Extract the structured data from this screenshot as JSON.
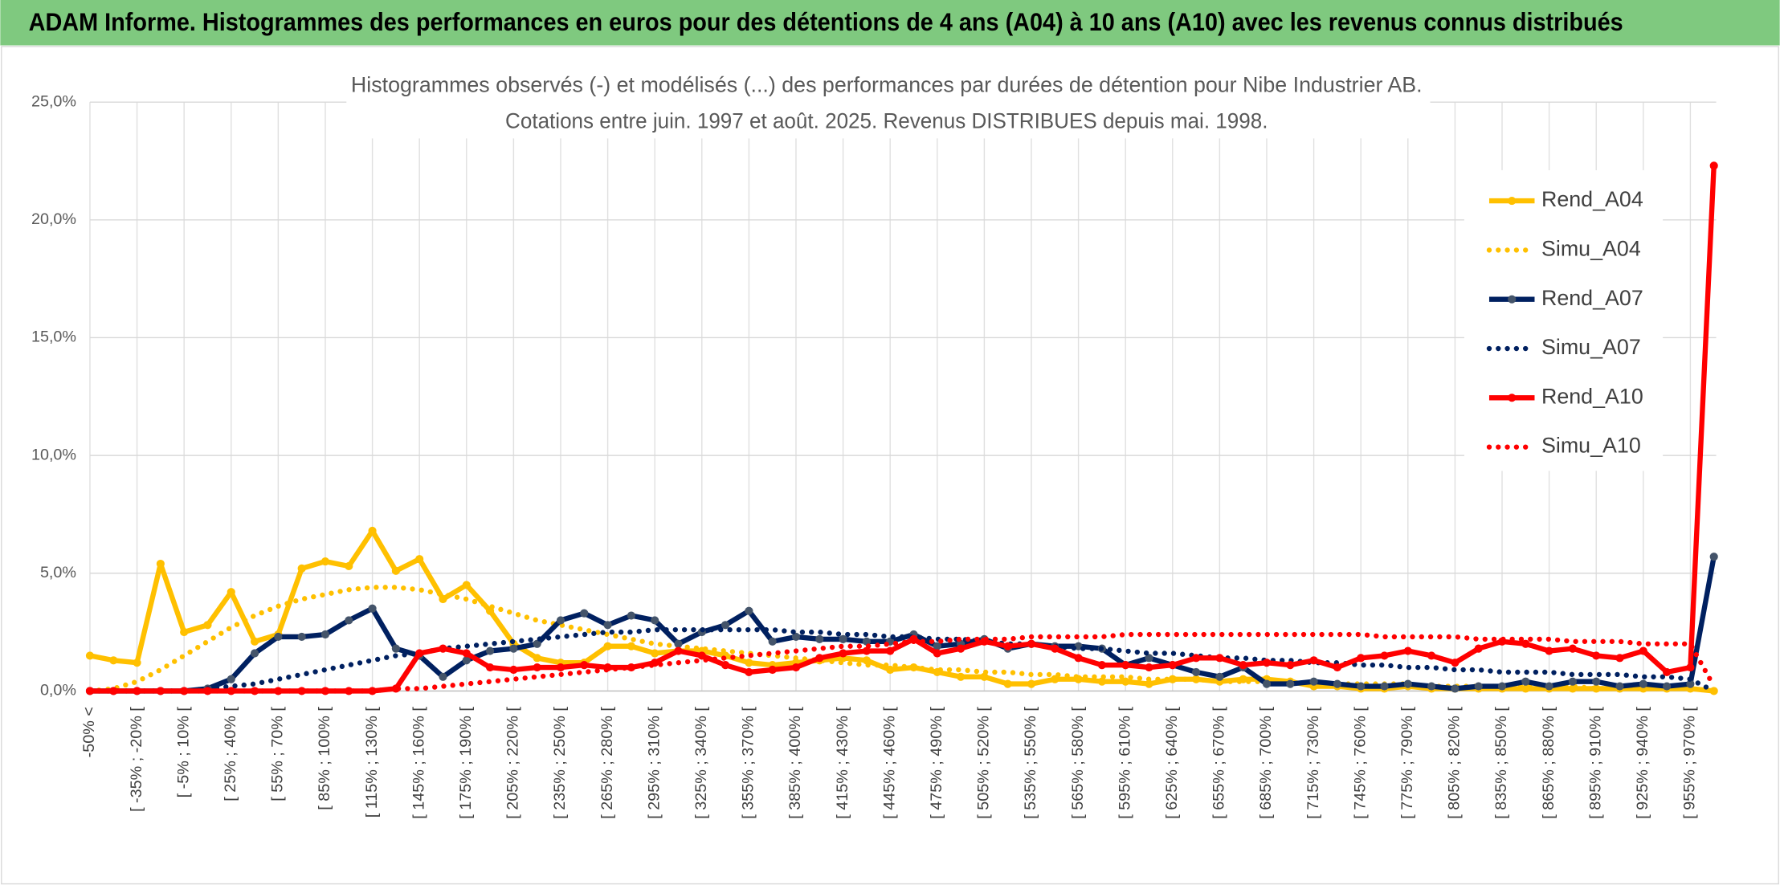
{
  "header": {
    "title": "ADAM Informe. Histogrammes des performances en euros pour des détentions de 4 ans (A04) à 10 ans (A10) avec les revenus connus distribués"
  },
  "chart_data": {
    "type": "line",
    "title": "Histogrammes observés (-) et modélisés (...) des performances par durées de détention pour Nibe Industrier AB.",
    "subtitle": "Cotations entre juin. 1997 et août. 2025. Revenus DISTRIBUES depuis mai. 1998.",
    "categories": [
      "-50% <",
      null,
      "[ -35% ; -20% [",
      null,
      "[ -5% ; 10% [",
      null,
      "[ 25% ; 40% [",
      null,
      "[ 55% ; 70% [",
      null,
      "[ 85% ; 100% [",
      null,
      "[ 115% ; 130% [",
      null,
      "[ 145% ; 160% [",
      null,
      "[ 175% ; 190% [",
      null,
      "[ 205% ; 220% [",
      null,
      "[ 235% ; 250% [",
      null,
      "[ 265% ; 280% [",
      null,
      "[ 295% ; 310% [",
      null,
      "[ 325% ; 340% [",
      null,
      "[ 355% ; 370% [",
      null,
      "[ 385% ; 400% [",
      null,
      "[ 415% ; 430% [",
      null,
      "[ 445% ; 460% [",
      null,
      "[ 475% ; 490% [",
      null,
      "[ 505% ; 520% [",
      null,
      "[ 535% ; 550% [",
      null,
      "[ 565% ; 580% [",
      null,
      "[ 595% ; 610% [",
      null,
      "[ 625% ; 640% [",
      null,
      "[ 655% ; 670% [",
      null,
      "[ 685% ; 700% [",
      null,
      "[ 715% ; 730% [",
      null,
      "[ 745% ; 760% [",
      null,
      "[ 775% ; 790% [",
      null,
      "[ 805% ; 820% [",
      null,
      "[ 835% ; 850% [",
      null,
      "[ 865% ; 880% [",
      null,
      "[ 895% ; 910% [",
      null,
      "[ 925% ; 940% [",
      null,
      "[ 955% ; 970% [",
      null
    ],
    "series": [
      {
        "name": "Rend_A04",
        "color": "#ffc000",
        "style": "solid",
        "markers": true,
        "values": [
          1.5,
          1.3,
          1.2,
          5.4,
          2.5,
          2.8,
          4.2,
          2.1,
          2.4,
          5.2,
          5.5,
          5.3,
          6.8,
          5.1,
          5.6,
          3.9,
          4.5,
          3.4,
          2.0,
          1.4,
          1.2,
          1.2,
          1.9,
          1.9,
          1.6,
          1.7,
          1.7,
          1.5,
          1.2,
          1.1,
          1.2,
          1.3,
          1.4,
          1.3,
          0.9,
          1.0,
          0.8,
          0.6,
          0.6,
          0.3,
          0.3,
          0.5,
          0.5,
          0.4,
          0.4,
          0.3,
          0.5,
          0.5,
          0.4,
          0.5,
          0.5,
          0.4,
          0.2,
          0.2,
          0.1,
          0.1,
          0.2,
          0.1,
          0.1,
          0.1,
          0.1,
          0.1,
          0.1,
          0.1,
          0.1,
          0.1,
          0.1,
          0.1,
          0.1,
          0.0
        ]
      },
      {
        "name": "Simu_A04",
        "color": "#ffc000",
        "style": "dotted",
        "markers": false,
        "values": [
          0,
          0.1,
          0.4,
          0.9,
          1.5,
          2.1,
          2.7,
          3.2,
          3.6,
          3.9,
          4.1,
          4.3,
          4.4,
          4.4,
          4.3,
          4.1,
          3.9,
          3.6,
          3.3,
          3.0,
          2.8,
          2.6,
          2.4,
          2.2,
          2.0,
          1.9,
          1.8,
          1.7,
          1.6,
          1.5,
          1.4,
          1.3,
          1.2,
          1.1,
          1.1,
          1.0,
          0.9,
          0.9,
          0.8,
          0.8,
          0.7,
          0.7,
          0.6,
          0.6,
          0.6,
          0.5,
          0.5,
          0.5,
          0.4,
          0.4,
          0.4,
          0.4,
          0.3,
          0.3,
          0.3,
          0.3,
          0.3,
          0.2,
          0.2,
          0.2,
          0.2,
          0.2,
          0.2,
          0.2,
          0.1,
          0.1,
          0.1,
          0.1,
          0.1,
          0.0
        ]
      },
      {
        "name": "Rend_A07",
        "color": "#002060",
        "style": "solid",
        "markers": true,
        "values": [
          0,
          0,
          0,
          0,
          0,
          0.1,
          0.5,
          1.6,
          2.3,
          2.3,
          2.4,
          3.0,
          3.5,
          1.8,
          1.5,
          0.6,
          1.3,
          1.7,
          1.8,
          2.0,
          3.0,
          3.3,
          2.8,
          3.2,
          3.0,
          2.0,
          2.5,
          2.8,
          3.4,
          2.1,
          2.3,
          2.2,
          2.2,
          2.1,
          2.1,
          2.4,
          1.9,
          2.0,
          2.2,
          1.8,
          2.0,
          1.9,
          1.9,
          1.8,
          1.1,
          1.4,
          1.1,
          0.8,
          0.6,
          1.0,
          0.3,
          0.3,
          0.4,
          0.3,
          0.2,
          0.2,
          0.3,
          0.2,
          0.1,
          0.2,
          0.2,
          0.4,
          0.2,
          0.4,
          0.4,
          0.2,
          0.3,
          0.2,
          0.3,
          5.7
        ]
      },
      {
        "name": "Simu_A07",
        "color": "#002060",
        "style": "dotted",
        "markers": false,
        "values": [
          0,
          0,
          0,
          0,
          0,
          0.1,
          0.2,
          0.3,
          0.5,
          0.7,
          0.9,
          1.1,
          1.3,
          1.5,
          1.6,
          1.8,
          1.9,
          2.0,
          2.1,
          2.2,
          2.3,
          2.4,
          2.5,
          2.5,
          2.6,
          2.6,
          2.6,
          2.6,
          2.6,
          2.6,
          2.5,
          2.5,
          2.4,
          2.4,
          2.3,
          2.3,
          2.2,
          2.2,
          2.1,
          2.0,
          2.0,
          1.9,
          1.8,
          1.8,
          1.7,
          1.6,
          1.6,
          1.5,
          1.4,
          1.4,
          1.3,
          1.3,
          1.2,
          1.2,
          1.1,
          1.1,
          1.0,
          1.0,
          0.9,
          0.9,
          0.8,
          0.8,
          0.8,
          0.7,
          0.7,
          0.7,
          0.6,
          0.6,
          0.5,
          0.0
        ]
      },
      {
        "name": "Rend_A10",
        "color": "#ff0000",
        "style": "solid",
        "markers": true,
        "values": [
          0,
          0,
          0,
          0,
          0,
          0,
          0,
          0,
          0,
          0,
          0,
          0,
          0,
          0.1,
          1.6,
          1.8,
          1.6,
          1.0,
          0.9,
          1.0,
          1.0,
          1.1,
          1.0,
          1.0,
          1.2,
          1.7,
          1.5,
          1.1,
          0.8,
          0.9,
          1.0,
          1.4,
          1.6,
          1.7,
          1.7,
          2.2,
          1.6,
          1.8,
          2.1,
          1.9,
          2.0,
          1.8,
          1.4,
          1.1,
          1.1,
          1.0,
          1.1,
          1.4,
          1.4,
          1.1,
          1.2,
          1.1,
          1.3,
          1.0,
          1.4,
          1.5,
          1.7,
          1.5,
          1.2,
          1.8,
          2.1,
          2.0,
          1.7,
          1.8,
          1.5,
          1.4,
          1.7,
          0.8,
          1.0,
          22.3
        ]
      },
      {
        "name": "Simu_A10",
        "color": "#ff0000",
        "style": "dotted",
        "markers": false,
        "values": [
          0,
          0,
          0,
          0,
          0,
          0,
          0,
          0,
          0,
          0,
          0,
          0,
          0,
          0.1,
          0.1,
          0.2,
          0.3,
          0.4,
          0.5,
          0.6,
          0.7,
          0.8,
          0.9,
          1.0,
          1.1,
          1.2,
          1.3,
          1.4,
          1.5,
          1.6,
          1.7,
          1.8,
          1.9,
          1.9,
          2.0,
          2.1,
          2.1,
          2.2,
          2.2,
          2.2,
          2.3,
          2.3,
          2.3,
          2.3,
          2.4,
          2.4,
          2.4,
          2.4,
          2.4,
          2.4,
          2.4,
          2.4,
          2.4,
          2.4,
          2.4,
          2.3,
          2.3,
          2.3,
          2.3,
          2.2,
          2.2,
          2.2,
          2.2,
          2.1,
          2.1,
          2.1,
          2.0,
          2.0,
          2.0,
          0.2
        ]
      }
    ],
    "ylim": [
      0,
      25
    ],
    "yticks": [
      {
        "value": 0,
        "label": "0,0%"
      },
      {
        "value": 5,
        "label": "5,0%"
      },
      {
        "value": 10,
        "label": "10,0%"
      },
      {
        "value": 15,
        "label": "15,0%"
      },
      {
        "value": 20,
        "label": "20,0%"
      },
      {
        "value": 25,
        "label": "25,0%"
      }
    ],
    "grid": true,
    "legend": "right"
  }
}
